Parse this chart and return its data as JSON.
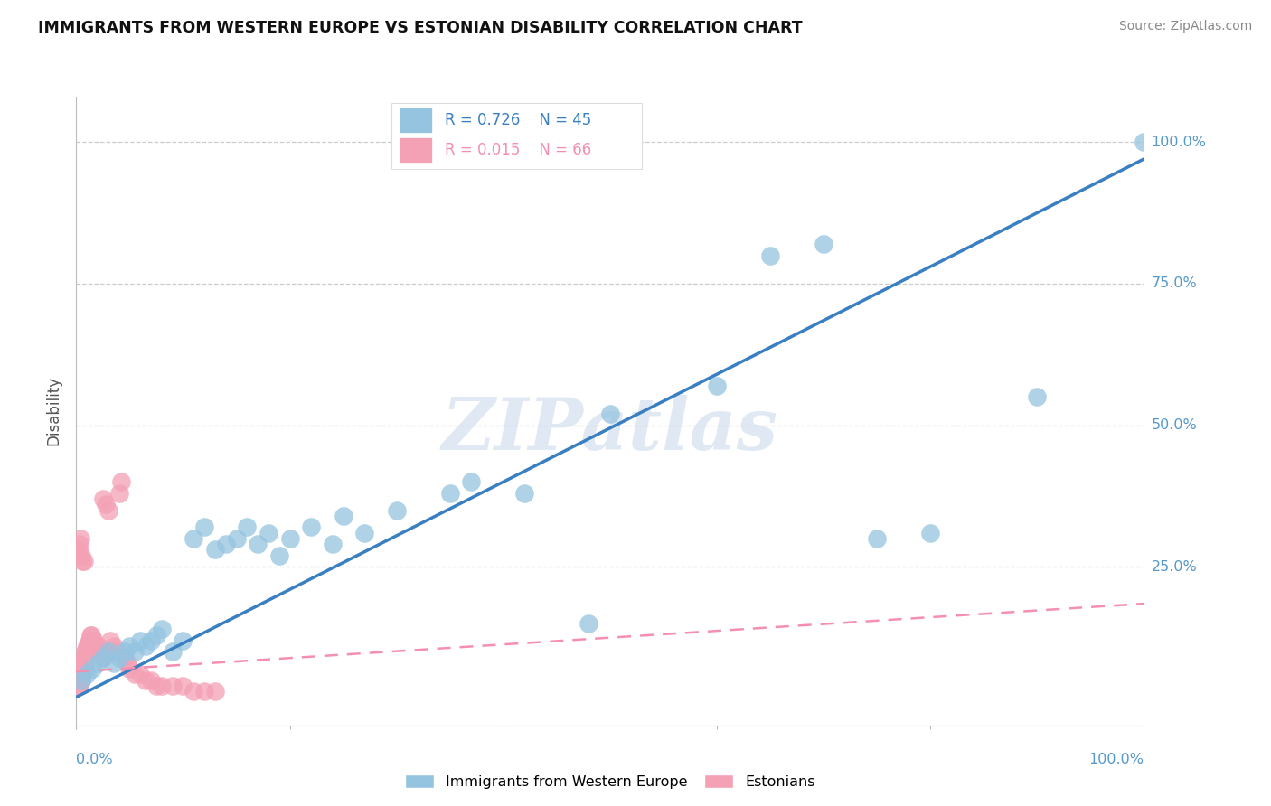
{
  "title": "IMMIGRANTS FROM WESTERN EUROPE VS ESTONIAN DISABILITY CORRELATION CHART",
  "source": "Source: ZipAtlas.com",
  "ylabel": "Disability",
  "watermark": "ZIPatlas",
  "legend_blue_r": "R = 0.726",
  "legend_blue_n": "N = 45",
  "legend_pink_r": "R = 0.015",
  "legend_pink_n": "N = 66",
  "legend_label_blue": "Immigrants from Western Europe",
  "legend_label_pink": "Estonians",
  "blue_color": "#94c4e0",
  "pink_color": "#f4a0b5",
  "blue_line_color": "#3a7fc1",
  "pink_line_color": "#f48fb1",
  "blue_scatter_x": [
    0.005,
    0.01,
    0.015,
    0.02,
    0.025,
    0.03,
    0.035,
    0.04,
    0.045,
    0.05,
    0.055,
    0.06,
    0.065,
    0.07,
    0.075,
    0.08,
    0.09,
    0.1,
    0.11,
    0.12,
    0.13,
    0.14,
    0.15,
    0.16,
    0.17,
    0.18,
    0.19,
    0.2,
    0.22,
    0.24,
    0.25,
    0.27,
    0.3,
    0.35,
    0.37,
    0.42,
    0.48,
    0.5,
    0.6,
    0.65,
    0.7,
    0.75,
    0.8,
    0.9,
    1.0
  ],
  "blue_scatter_y": [
    0.05,
    0.06,
    0.07,
    0.08,
    0.09,
    0.1,
    0.08,
    0.09,
    0.1,
    0.11,
    0.1,
    0.12,
    0.11,
    0.12,
    0.13,
    0.14,
    0.1,
    0.12,
    0.3,
    0.32,
    0.28,
    0.29,
    0.3,
    0.32,
    0.29,
    0.31,
    0.27,
    0.3,
    0.32,
    0.29,
    0.34,
    0.31,
    0.35,
    0.38,
    0.4,
    0.38,
    0.15,
    0.52,
    0.57,
    0.8,
    0.82,
    0.3,
    0.31,
    0.55,
    1.0
  ],
  "pink_scatter_x": [
    0.002,
    0.003,
    0.004,
    0.005,
    0.005,
    0.006,
    0.006,
    0.007,
    0.007,
    0.008,
    0.008,
    0.009,
    0.009,
    0.01,
    0.01,
    0.011,
    0.012,
    0.012,
    0.013,
    0.014,
    0.015,
    0.016,
    0.017,
    0.018,
    0.02,
    0.021,
    0.022,
    0.025,
    0.025,
    0.028,
    0.03,
    0.032,
    0.035,
    0.038,
    0.04,
    0.042,
    0.045,
    0.048,
    0.05,
    0.055,
    0.06,
    0.065,
    0.07,
    0.075,
    0.08,
    0.09,
    0.1,
    0.11,
    0.12,
    0.13,
    0.003,
    0.004,
    0.005,
    0.006,
    0.007,
    0.008,
    0.009,
    0.01,
    0.012,
    0.015,
    0.002,
    0.003,
    0.004,
    0.005,
    0.006,
    0.007
  ],
  "pink_scatter_y": [
    0.04,
    0.04,
    0.05,
    0.05,
    0.06,
    0.06,
    0.07,
    0.07,
    0.08,
    0.08,
    0.09,
    0.09,
    0.1,
    0.1,
    0.11,
    0.11,
    0.12,
    0.12,
    0.13,
    0.13,
    0.12,
    0.11,
    0.12,
    0.11,
    0.1,
    0.11,
    0.1,
    0.09,
    0.37,
    0.36,
    0.35,
    0.12,
    0.11,
    0.1,
    0.38,
    0.4,
    0.09,
    0.08,
    0.07,
    0.06,
    0.06,
    0.05,
    0.05,
    0.04,
    0.04,
    0.04,
    0.04,
    0.03,
    0.03,
    0.03,
    0.05,
    0.06,
    0.07,
    0.08,
    0.09,
    0.1,
    0.1,
    0.1,
    0.1,
    0.1,
    0.28,
    0.29,
    0.3,
    0.27,
    0.26,
    0.26
  ],
  "blue_trend_x": [
    0.0,
    1.0
  ],
  "blue_trend_y": [
    0.02,
    0.97
  ],
  "pink_trend_x": [
    0.0,
    1.0
  ],
  "pink_trend_y": [
    0.065,
    0.185
  ],
  "xlim": [
    0.0,
    1.0
  ],
  "ylim": [
    -0.03,
    1.08
  ],
  "yticks": [
    0.0,
    0.25,
    0.5,
    0.75,
    1.0
  ],
  "ytick_labels": [
    "",
    "25.0%",
    "50.0%",
    "75.0%",
    "100.0%"
  ],
  "xtick_labels_show": [
    "0.0%",
    "100.0%"
  ]
}
